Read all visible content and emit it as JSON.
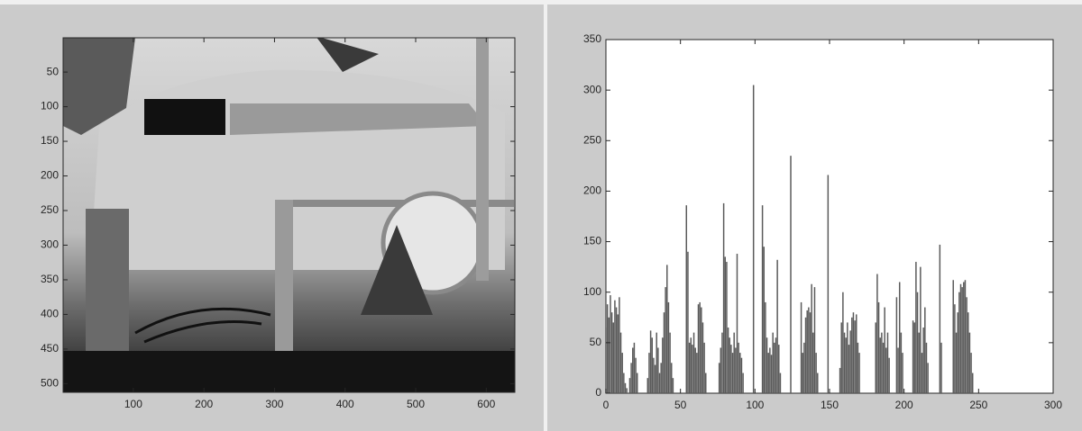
{
  "chart_data": [
    {
      "type": "image",
      "xlim": [
        0.5,
        640.5
      ],
      "ylim": [
        0.5,
        512.5
      ],
      "y_reverse": true,
      "xticks": [
        100,
        200,
        300,
        400,
        500,
        600
      ],
      "yticks": [
        50,
        100,
        150,
        200,
        250,
        300,
        350,
        400,
        450,
        500
      ]
    },
    {
      "type": "histogram",
      "color": "#5a5a5a",
      "xlim": [
        0,
        300
      ],
      "ylim": [
        0,
        350
      ],
      "xticks": [
        0,
        50,
        100,
        150,
        200,
        250,
        300
      ],
      "yticks": [
        0,
        50,
        100,
        150,
        200,
        250,
        300,
        350
      ],
      "x": [
        0,
        1,
        2,
        3,
        4,
        5,
        6,
        7,
        8,
        9,
        10,
        11,
        12,
        13,
        14,
        15,
        16,
        17,
        18,
        19,
        20,
        21,
        22,
        23,
        24,
        25,
        26,
        27,
        28,
        29,
        30,
        31,
        32,
        33,
        34,
        35,
        36,
        37,
        38,
        39,
        40,
        41,
        42,
        43,
        44,
        45,
        46,
        47,
        48,
        49,
        50,
        51,
        52,
        53,
        54,
        55,
        56,
        57,
        58,
        59,
        60,
        61,
        62,
        63,
        64,
        65,
        66,
        67,
        68,
        69,
        70,
        71,
        72,
        73,
        74,
        75,
        76,
        77,
        78,
        79,
        80,
        81,
        82,
        83,
        84,
        85,
        86,
        87,
        88,
        89,
        90,
        91,
        92,
        93,
        94,
        95,
        96,
        97,
        98,
        99,
        100,
        101,
        102,
        103,
        104,
        105,
        106,
        107,
        108,
        109,
        110,
        111,
        112,
        113,
        114,
        115,
        116,
        117,
        118,
        119,
        120,
        121,
        122,
        123,
        124,
        125,
        126,
        127,
        128,
        129,
        130,
        131,
        132,
        133,
        134,
        135,
        136,
        137,
        138,
        139,
        140,
        141,
        142,
        143,
        144,
        145,
        146,
        147,
        148,
        149,
        150,
        151,
        152,
        153,
        154,
        155,
        156,
        157,
        158,
        159,
        160,
        161,
        162,
        163,
        164,
        165,
        166,
        167,
        168,
        169,
        170,
        171,
        172,
        173,
        174,
        175,
        176,
        177,
        178,
        179,
        180,
        181,
        182,
        183,
        184,
        185,
        186,
        187,
        188,
        189,
        190,
        191,
        192,
        193,
        194,
        195,
        196,
        197,
        198,
        199,
        200,
        201,
        202,
        203,
        204,
        205,
        206,
        207,
        208,
        209,
        210,
        211,
        212,
        213,
        214,
        215,
        216,
        217,
        218,
        219,
        220,
        221,
        222,
        223,
        224,
        225,
        226,
        227,
        228,
        229,
        230,
        231,
        232,
        233,
        234,
        235,
        236,
        237,
        238,
        239,
        240,
        241,
        242,
        243,
        244,
        245,
        246,
        247,
        248,
        249,
        250,
        251,
        252,
        253,
        254,
        255
      ],
      "values": [
        65,
        88,
        75,
        97,
        80,
        70,
        92,
        85,
        78,
        95,
        60,
        40,
        20,
        10,
        5,
        0,
        15,
        30,
        45,
        50,
        35,
        20,
        0,
        0,
        0,
        0,
        0,
        0,
        15,
        40,
        62,
        55,
        35,
        28,
        60,
        45,
        20,
        30,
        55,
        80,
        105,
        127,
        90,
        60,
        30,
        15,
        0,
        0,
        0,
        0,
        0,
        0,
        0,
        0,
        186,
        140,
        50,
        55,
        48,
        60,
        45,
        40,
        88,
        90,
        85,
        70,
        50,
        20,
        0,
        0,
        0,
        0,
        0,
        0,
        0,
        0,
        30,
        45,
        60,
        188,
        135,
        130,
        65,
        55,
        48,
        40,
        60,
        45,
        138,
        50,
        40,
        35,
        20,
        0,
        0,
        0,
        0,
        0,
        0,
        305,
        0,
        0,
        0,
        0,
        0,
        186,
        145,
        90,
        55,
        40,
        45,
        38,
        60,
        50,
        55,
        132,
        48,
        20,
        0,
        0,
        0,
        0,
        0,
        0,
        235,
        0,
        0,
        0,
        0,
        0,
        0,
        90,
        40,
        50,
        75,
        82,
        85,
        80,
        108,
        60,
        105,
        40,
        20,
        0,
        0,
        0,
        0,
        0,
        0,
        216,
        0,
        0,
        0,
        0,
        0,
        0,
        0,
        25,
        70,
        100,
        60,
        55,
        70,
        48,
        62,
        75,
        80,
        72,
        78,
        50,
        40,
        0,
        0,
        0,
        0,
        0,
        0,
        0,
        0,
        0,
        0,
        70,
        118,
        90,
        55,
        60,
        50,
        85,
        45,
        60,
        35,
        0,
        0,
        0,
        0,
        95,
        45,
        110,
        60,
        40,
        0,
        0,
        0,
        0,
        0,
        0,
        72,
        70,
        130,
        100,
        60,
        125,
        40,
        65,
        85,
        50,
        30,
        0,
        0,
        0,
        0,
        0,
        0,
        0,
        147,
        50,
        0,
        0,
        0,
        0,
        0,
        0,
        0,
        112,
        88,
        60,
        80,
        100,
        108,
        105,
        110,
        112,
        95,
        80,
        60,
        40,
        20,
        0,
        0,
        0,
        0,
        0,
        0,
        0,
        0,
        0
      ]
    }
  ]
}
